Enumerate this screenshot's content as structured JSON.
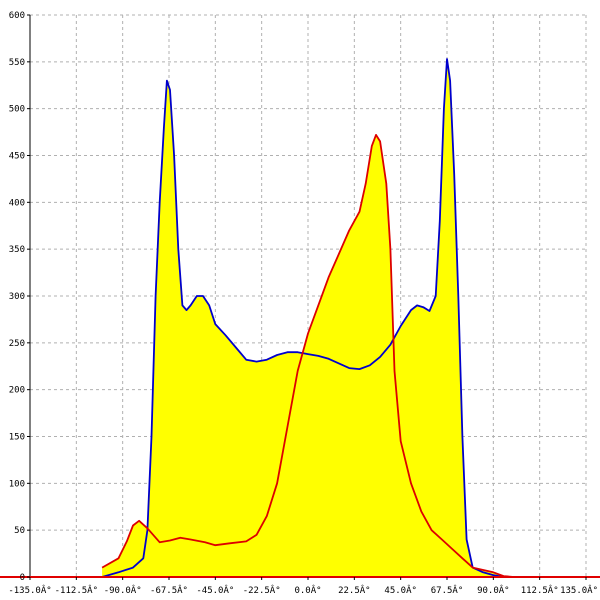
{
  "chart_data": {
    "type": "area",
    "title": "",
    "xlabel": "",
    "ylabel": "",
    "xlim": [
      -135,
      135
    ],
    "ylim": [
      0,
      600
    ],
    "grid": true,
    "x_ticks": [
      {
        "value": -135,
        "label": "-135.0Â°"
      },
      {
        "value": -112.5,
        "label": "-112.5Â°"
      },
      {
        "value": -90,
        "label": "-90.0Â°"
      },
      {
        "value": -67.5,
        "label": "-67.5Â°"
      },
      {
        "value": -45,
        "label": "-45.0Â°"
      },
      {
        "value": -22.5,
        "label": "-22.5Â°"
      },
      {
        "value": 0,
        "label": "0.0Â°"
      },
      {
        "value": 22.5,
        "label": "22.5Â°"
      },
      {
        "value": 45,
        "label": "45.0Â°"
      },
      {
        "value": 67.5,
        "label": "67.5Â°"
      },
      {
        "value": 90,
        "label": "90.0Â°"
      },
      {
        "value": 112.5,
        "label": "112.5Â°"
      },
      {
        "value": 135,
        "label": "135.0Â°"
      }
    ],
    "y_ticks": [
      {
        "value": 0,
        "label": "0"
      },
      {
        "value": 50,
        "label": "50"
      },
      {
        "value": 100,
        "label": "100"
      },
      {
        "value": 150,
        "label": "150"
      },
      {
        "value": 200,
        "label": "200"
      },
      {
        "value": 250,
        "label": "250"
      },
      {
        "value": 300,
        "label": "300"
      },
      {
        "value": 350,
        "label": "350"
      },
      {
        "value": 400,
        "label": "400"
      },
      {
        "value": 450,
        "label": "450"
      },
      {
        "value": 500,
        "label": "500"
      },
      {
        "value": 550,
        "label": "550"
      },
      {
        "value": 600,
        "label": "600"
      }
    ],
    "fill_color": "#ffff00",
    "series": [
      {
        "color": "#0000cc",
        "points": [
          [
            -100,
            0
          ],
          [
            -92,
            5
          ],
          [
            -85,
            10
          ],
          [
            -80,
            20
          ],
          [
            -78,
            50
          ],
          [
            -76,
            150
          ],
          [
            -74,
            300
          ],
          [
            -72,
            400
          ],
          [
            -70,
            480
          ],
          [
            -68.5,
            530
          ],
          [
            -67,
            520
          ],
          [
            -65,
            450
          ],
          [
            -63,
            350
          ],
          [
            -61,
            290
          ],
          [
            -59,
            285
          ],
          [
            -57,
            290
          ],
          [
            -54,
            300
          ],
          [
            -51,
            300
          ],
          [
            -48,
            290
          ],
          [
            -45,
            270
          ],
          [
            -40,
            258
          ],
          [
            -35,
            245
          ],
          [
            -30,
            232
          ],
          [
            -25,
            230
          ],
          [
            -20,
            232
          ],
          [
            -15,
            237
          ],
          [
            -10,
            240
          ],
          [
            -5,
            240
          ],
          [
            0,
            238
          ],
          [
            5,
            236
          ],
          [
            10,
            233
          ],
          [
            15,
            228
          ],
          [
            20,
            223
          ],
          [
            25,
            222
          ],
          [
            30,
            226
          ],
          [
            35,
            235
          ],
          [
            40,
            248
          ],
          [
            45,
            268
          ],
          [
            50,
            285
          ],
          [
            53,
            290
          ],
          [
            56,
            288
          ],
          [
            59,
            284
          ],
          [
            62,
            300
          ],
          [
            64,
            380
          ],
          [
            66,
            500
          ],
          [
            67.5,
            553
          ],
          [
            69,
            530
          ],
          [
            71,
            430
          ],
          [
            73,
            300
          ],
          [
            75,
            150
          ],
          [
            77,
            40
          ],
          [
            80,
            10
          ],
          [
            85,
            5
          ],
          [
            90,
            2
          ],
          [
            95,
            0
          ]
        ]
      },
      {
        "color": "#dd0000",
        "points": [
          [
            -100,
            10
          ],
          [
            -92,
            20
          ],
          [
            -88,
            38
          ],
          [
            -85,
            55
          ],
          [
            -82,
            60
          ],
          [
            -78,
            52
          ],
          [
            -72,
            37
          ],
          [
            -67,
            39
          ],
          [
            -62,
            42
          ],
          [
            -57,
            40
          ],
          [
            -50,
            37
          ],
          [
            -45,
            34
          ],
          [
            -38,
            36
          ],
          [
            -30,
            38
          ],
          [
            -25,
            45
          ],
          [
            -20,
            65
          ],
          [
            -15,
            100
          ],
          [
            -10,
            160
          ],
          [
            -5,
            220
          ],
          [
            0,
            260
          ],
          [
            5,
            290
          ],
          [
            10,
            320
          ],
          [
            15,
            345
          ],
          [
            20,
            370
          ],
          [
            25,
            390
          ],
          [
            28,
            420
          ],
          [
            31,
            460
          ],
          [
            33,
            472
          ],
          [
            35,
            465
          ],
          [
            38,
            420
          ],
          [
            40,
            350
          ],
          [
            42,
            220
          ],
          [
            45,
            145
          ],
          [
            50,
            100
          ],
          [
            55,
            70
          ],
          [
            60,
            50
          ],
          [
            65,
            40
          ],
          [
            70,
            30
          ],
          [
            75,
            20
          ],
          [
            80,
            10
          ],
          [
            90,
            5
          ],
          [
            95,
            1
          ],
          [
            100,
            0
          ]
        ]
      }
    ]
  }
}
